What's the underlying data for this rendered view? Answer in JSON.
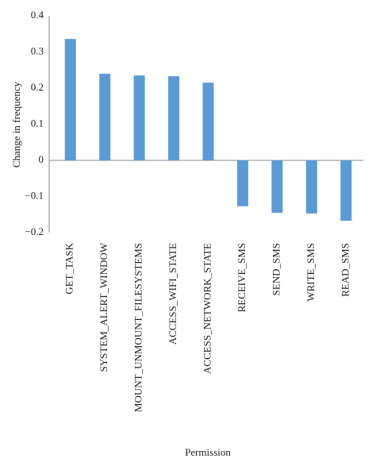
{
  "chart_data": {
    "type": "bar",
    "x_label": "Permission",
    "y_label": "Change in frequency",
    "categories": [
      "GET_TASK",
      "SYSTEM_ALERT_WINDOW",
      "MOUNT_UNMOUNT_FILESYSTEMS",
      "ACCESS_WIFI_STATE",
      "ACCESS_NETWORK_STATE",
      "RECEIVE_SMS",
      "SEND_SMS",
      "WRITE_SMS",
      "READ_SMS"
    ],
    "values": [
      0.336,
      0.24,
      0.235,
      0.233,
      0.215,
      -0.127,
      -0.145,
      -0.147,
      -0.167
    ],
    "color": "#5b9bd5",
    "ylim": [
      -0.2,
      0.4
    ],
    "yticks": [
      {
        "value": -0.2,
        "label": "−0.2"
      },
      {
        "value": -0.1,
        "label": "−0.1"
      },
      0,
      0.1,
      0.2,
      0.3,
      0.4
    ]
  }
}
